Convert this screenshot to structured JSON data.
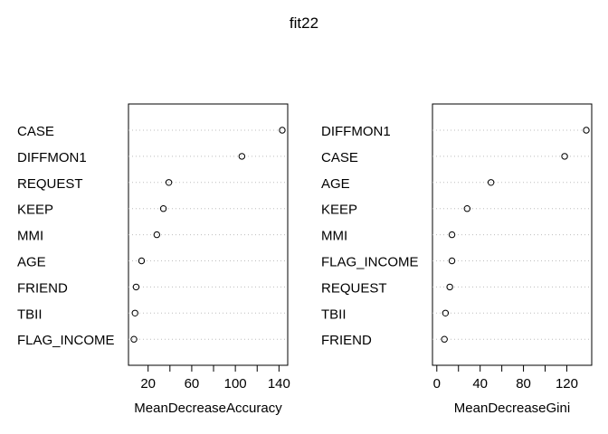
{
  "title": "fit22",
  "chart_data": [
    {
      "type": "scatter",
      "subtype": "dotchart",
      "xlabel": "MeanDecreaseAccuracy",
      "ylabel": "",
      "xlim": [
        2,
        148
      ],
      "xticks": [
        20,
        60,
        100,
        140
      ],
      "categories": [
        "CASE",
        "DIFFMON1",
        "REQUEST",
        "KEEP",
        "MMI",
        "AGE",
        "FRIEND",
        "TBII",
        "FLAG_INCOME"
      ],
      "values": [
        143,
        106,
        39,
        34,
        28,
        14,
        9,
        8,
        7
      ],
      "grid": "dotted-horizontal",
      "marker": "open-circle"
    },
    {
      "type": "scatter",
      "subtype": "dotchart",
      "xlabel": "MeanDecreaseGini",
      "ylabel": "",
      "xlim": [
        -4,
        143
      ],
      "xticks": [
        0,
        40,
        80,
        120
      ],
      "categories": [
        "DIFFMON1",
        "CASE",
        "AGE",
        "KEEP",
        "MMI",
        "FLAG_INCOME",
        "REQUEST",
        "TBII",
        "FRIEND"
      ],
      "values": [
        138,
        118,
        50,
        28,
        14,
        14,
        12,
        8,
        7
      ],
      "grid": "dotted-horizontal",
      "marker": "open-circle"
    }
  ]
}
